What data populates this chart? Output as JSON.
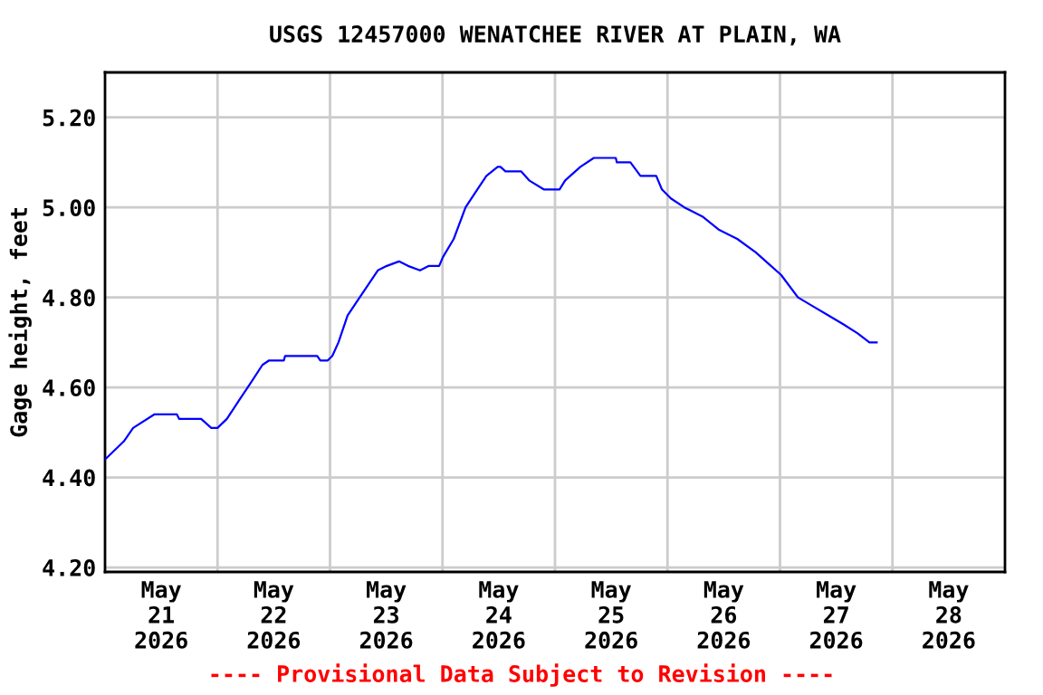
{
  "chart_data": {
    "type": "line",
    "title": "USGS 12457000 WENATCHEE RIVER AT PLAIN, WA",
    "ylabel": "Gage height, feet",
    "annotations": [
      "---- Provisional Data Subject to Revision ----"
    ],
    "xlim": [
      "2026-05-21T00:00",
      "2026-05-29T00:00"
    ],
    "xticks": [
      {
        "value": "2026-05-21T12:00",
        "label": "May\n21\n2026"
      },
      {
        "value": "2026-05-22T00:00",
        "label": null
      },
      {
        "value": "2026-05-22T12:00",
        "label": "May\n22\n2026"
      },
      {
        "value": "2026-05-23T00:00",
        "label": null
      },
      {
        "value": "2026-05-23T12:00",
        "label": "May\n23\n2026"
      },
      {
        "value": "2026-05-24T00:00",
        "label": null
      },
      {
        "value": "2026-05-24T12:00",
        "label": "May\n24\n2026"
      },
      {
        "value": "2026-05-25T00:00",
        "label": null
      },
      {
        "value": "2026-05-25T12:00",
        "label": "May\n25\n2026"
      },
      {
        "value": "2026-05-26T00:00",
        "label": null
      },
      {
        "value": "2026-05-26T12:00",
        "label": "May\n26\n2026"
      },
      {
        "value": "2026-05-27T00:00",
        "label": null
      },
      {
        "value": "2026-05-27T12:00",
        "label": "May\n27\n2026"
      },
      {
        "value": "2026-05-28T00:00",
        "label": null
      },
      {
        "value": "2026-05-28T12:00",
        "label": "May\n28\n2026"
      }
    ],
    "ylim": [
      4.19,
      5.3
    ],
    "yticks": [
      {
        "value": 4.2,
        "label": "4.20"
      },
      {
        "value": 4.4,
        "label": "4.40"
      },
      {
        "value": 4.6,
        "label": "4.60"
      },
      {
        "value": 4.8,
        "label": "4.80"
      },
      {
        "value": 5.0,
        "label": "5.00"
      },
      {
        "value": 5.2,
        "label": "5.20"
      }
    ],
    "grid": true,
    "legend": false,
    "series": [
      {
        "color": "#0000ff",
        "x": [
          "2026-05-21T00:00",
          "2026-05-21T02:00",
          "2026-05-21T04:00",
          "2026-05-21T06:00",
          "2026-05-21T10:30",
          "2026-05-21T15:20",
          "2026-05-21T15:50",
          "2026-05-21T20:30",
          "2026-05-21T22:40",
          "2026-05-22T00:00",
          "2026-05-22T02:00",
          "2026-05-22T04:30",
          "2026-05-22T07:05",
          "2026-05-22T09:35",
          "2026-05-22T11:00",
          "2026-05-22T14:10",
          "2026-05-22T14:25",
          "2026-05-22T21:17",
          "2026-05-22T21:56",
          "2026-05-22T23:31",
          "2026-05-23T00:30",
          "2026-05-23T01:48",
          "2026-05-23T03:45",
          "2026-05-23T05:41",
          "2026-05-23T07:38",
          "2026-05-23T10:12",
          "2026-05-23T12:07",
          "2026-05-23T14:43",
          "2026-05-23T16:39",
          "2026-05-23T19:12",
          "2026-05-23T21:07",
          "2026-05-23T23:17",
          "2026-05-24T00:07",
          "2026-05-24T02:24",
          "2026-05-24T04:55",
          "2026-05-24T07:26",
          "2026-05-24T09:22",
          "2026-05-24T11:46",
          "2026-05-24T12:22",
          "2026-05-24T13:26",
          "2026-05-24T16:48",
          "2026-05-24T18:29",
          "2026-05-24T21:36",
          "2026-05-25T00:58",
          "2026-05-25T02:10",
          "2026-05-25T05:25",
          "2026-05-25T08:17",
          "2026-05-25T12:58",
          "2026-05-25T13:12",
          "2026-05-25T16:05",
          "2026-05-25T18:14",
          "2026-05-25T21:36",
          "2026-05-25T22:48",
          "2026-05-26T00:43",
          "2026-05-26T03:36",
          "2026-05-26T07:26",
          "2026-05-26T11:02",
          "2026-05-26T14:53",
          "2026-05-26T18:50",
          "2026-05-26T22:05",
          "2026-05-27T00:14",
          "2026-05-27T03:50",
          "2026-05-27T07:05",
          "2026-05-27T10:19",
          "2026-05-27T13:34",
          "2026-05-27T16:34",
          "2026-05-27T19:05",
          "2026-05-27T20:38"
        ],
        "values": [
          4.44,
          4.46,
          4.48,
          4.51,
          4.54,
          4.54,
          4.53,
          4.53,
          4.51,
          4.51,
          4.53,
          4.57,
          4.61,
          4.65,
          4.66,
          4.66,
          4.67,
          4.67,
          4.66,
          4.66,
          4.67,
          4.7,
          4.76,
          4.79,
          4.82,
          4.86,
          4.87,
          4.88,
          4.87,
          4.86,
          4.87,
          4.87,
          4.89,
          4.93,
          5.0,
          5.04,
          5.07,
          5.09,
          5.09,
          5.08,
          5.08,
          5.06,
          5.04,
          5.04,
          5.06,
          5.09,
          5.11,
          5.11,
          5.1,
          5.1,
          5.07,
          5.07,
          5.04,
          5.02,
          5.0,
          4.98,
          4.95,
          4.93,
          4.9,
          4.87,
          4.85,
          4.8,
          4.78,
          4.76,
          4.74,
          4.72,
          4.7,
          4.7
        ]
      }
    ]
  }
}
